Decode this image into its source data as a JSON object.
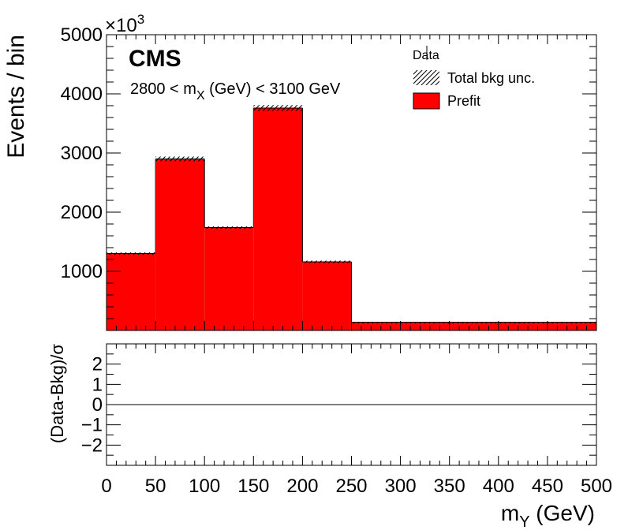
{
  "chart_data": {
    "type": "bar",
    "experiment": "CMS",
    "selection": {
      "prefix": "2800 < m",
      "sub": "X",
      "suffix": " (GeV) < 3100 GeV"
    },
    "scale_label": {
      "base": "×10",
      "exp": "3"
    },
    "legend": {
      "position": "top-right",
      "entries": [
        {
          "label": "Data",
          "kind": "data"
        },
        {
          "label": "Total bkg unc.",
          "kind": "hatch"
        },
        {
          "label": "Prefit",
          "kind": "fill",
          "color": "#ff0000"
        }
      ]
    },
    "x": {
      "label_main": "m",
      "label_sub": "Y",
      "label_unit": " (GeV)",
      "lim": [
        0,
        500
      ],
      "ticks": [
        0,
        50,
        100,
        150,
        200,
        250,
        300,
        350,
        400,
        450,
        500
      ]
    },
    "main_panel": {
      "ylabel": "Events / bin",
      "ylim": [
        0,
        5000
      ],
      "yticks": [
        1000,
        2000,
        3000,
        4000,
        5000
      ],
      "series": [
        {
          "name": "Prefit",
          "color": "#ff0000",
          "bins": [
            {
              "lo": 0,
              "hi": 50,
              "value": 1300,
              "unc": 20
            },
            {
              "lo": 50,
              "hi": 100,
              "value": 2900,
              "unc": 40
            },
            {
              "lo": 100,
              "hi": 150,
              "value": 1740,
              "unc": 20
            },
            {
              "lo": 150,
              "hi": 200,
              "value": 3760,
              "unc": 50
            },
            {
              "lo": 200,
              "hi": 250,
              "value": 1160,
              "unc": 20
            },
            {
              "lo": 250,
              "hi": 500,
              "value": 140,
              "unc": 5
            }
          ]
        }
      ]
    },
    "ratio_panel": {
      "ylabel": "(Data-Bkg)/σ",
      "ylim": [
        -3,
        3
      ],
      "yticks": [
        -2,
        -1,
        0,
        1,
        2
      ],
      "reference_line": 0
    }
  }
}
